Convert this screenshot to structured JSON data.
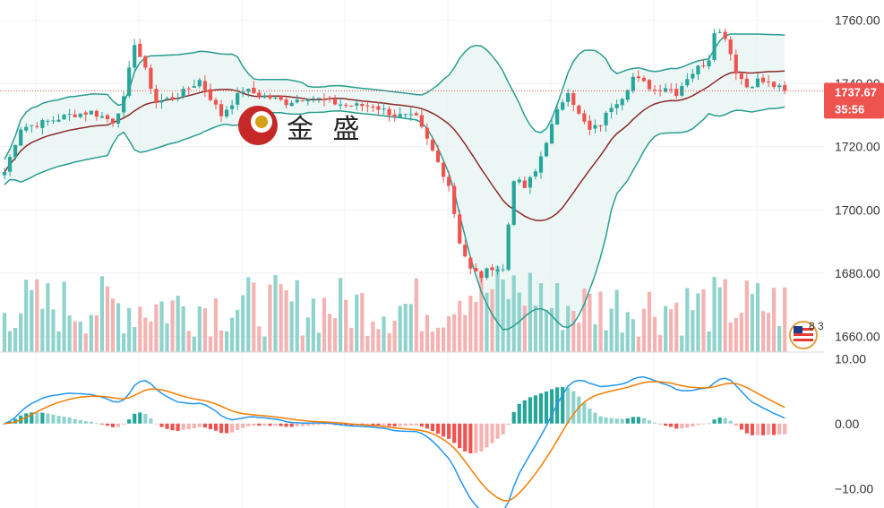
{
  "chart_data": [
    {
      "type": "candlestick",
      "panel": "price",
      "overlays": [
        "bollinger-upper",
        "bollinger-middle",
        "bollinger-lower"
      ],
      "ylim": [
        1655,
        1765
      ],
      "y_ticks": [
        "1760.00",
        "1740.00",
        "1720.00",
        "1700.00",
        "1680.00",
        "1660.00"
      ],
      "last_price": "1737.67",
      "countdown": "35:56",
      "volume": {
        "type": "bar",
        "max": 100
      }
    },
    {
      "type": "macd",
      "panel": "indicator",
      "ylim": [
        -13,
        11
      ],
      "y_ticks": [
        "10.00",
        "0.00",
        "−10.00"
      ]
    }
  ],
  "colors": {
    "up": "#26a69a",
    "down": "#ef5350",
    "up_light": "#8fd3cc",
    "down_light": "#f4b3b3",
    "band": "#2a9d8f",
    "band_fill": "#e6f4f3",
    "mid": "#8b2a2a",
    "macd": "#2196f3",
    "signal": "#f57c00",
    "price_tag": "#ef5350"
  },
  "logo": {
    "text": "金 盛"
  },
  "event_flag": {
    "label": "8 3",
    "icon": "us-flag-icon"
  }
}
